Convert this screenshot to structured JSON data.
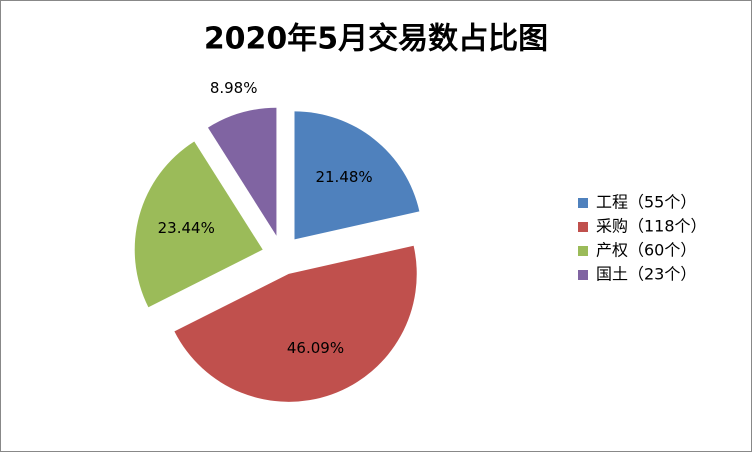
{
  "chart_data": {
    "type": "pie",
    "title": "2020年5月交易数占比图",
    "categories": [
      "工程（55个）",
      "采购（118个）",
      "产权（60个）",
      "国土（23个）"
    ],
    "values": [
      21.48,
      46.09,
      23.44,
      8.98
    ],
    "value_labels": [
      "21.48%",
      "46.09%",
      "23.44%",
      "8.98%"
    ],
    "colors": [
      "#4f81bd",
      "#c0504d",
      "#9bbb59",
      "#8064a2"
    ],
    "legend": "right"
  }
}
